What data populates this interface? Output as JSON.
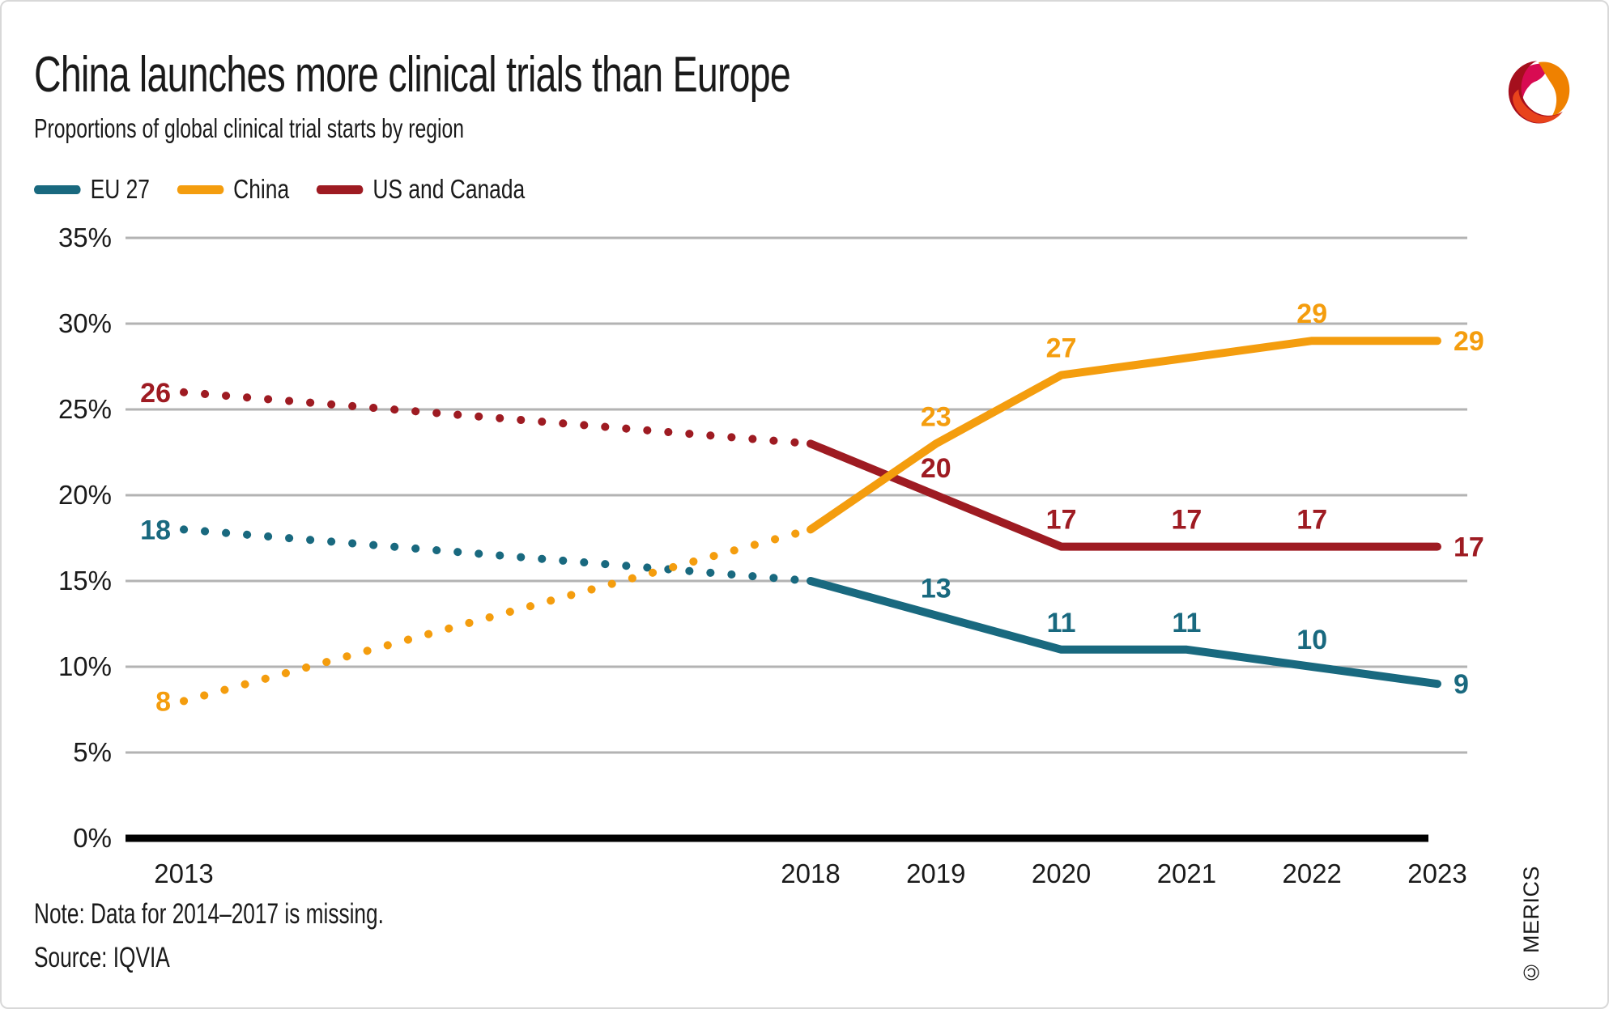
{
  "chart_data": {
    "type": "line",
    "title": "China launches more clinical trials than Europe",
    "subtitle": "Proportions of global clinical trial starts by region",
    "unit": "%",
    "x": [
      2013,
      2018,
      2019,
      2020,
      2021,
      2022,
      2023
    ],
    "x_tick_labels": [
      "2013",
      "2018",
      "2019",
      "2020",
      "2021",
      "2022",
      "2023"
    ],
    "ylim": [
      0,
      35
    ],
    "ytick_step": 5,
    "ytick_labels": [
      "0%",
      "5%",
      "10%",
      "15%",
      "20%",
      "25%",
      "30%",
      "35%"
    ],
    "grid": "horizontal",
    "legend_position": "top-left",
    "missing_data_segment": [
      2013,
      2018
    ],
    "series": [
      {
        "name": "EU 27",
        "color": "#19697f",
        "values": [
          18,
          15,
          13,
          11,
          11,
          10,
          9
        ],
        "point_labels": [
          "18",
          "",
          "13",
          "11",
          "11",
          "10",
          "9"
        ]
      },
      {
        "name": "China",
        "color": "#f49d0e",
        "values": [
          8,
          18,
          23,
          27,
          28,
          29,
          29
        ],
        "point_labels": [
          "8",
          "",
          "23",
          "27",
          "",
          "29",
          "29"
        ]
      },
      {
        "name": "US and Canada",
        "color": "#9e1b22",
        "values": [
          26,
          23,
          20,
          17,
          17,
          17,
          17
        ],
        "point_labels": [
          "26",
          "",
          "20",
          "17",
          "17",
          "17",
          "17"
        ]
      }
    ]
  },
  "notes": {
    "note": "Note: Data for 2014–2017 is missing.",
    "source": "Source: IQVIA",
    "copyright": "© MERICS"
  },
  "colors": {
    "grid": "#b3b3b3",
    "axis": "#000000",
    "text": "#1a1a1a",
    "logo_dark_red": "#a50f1d",
    "logo_bright_red": "#e8431c",
    "logo_orange": "#ef8100",
    "logo_magenta": "#d80b52"
  }
}
